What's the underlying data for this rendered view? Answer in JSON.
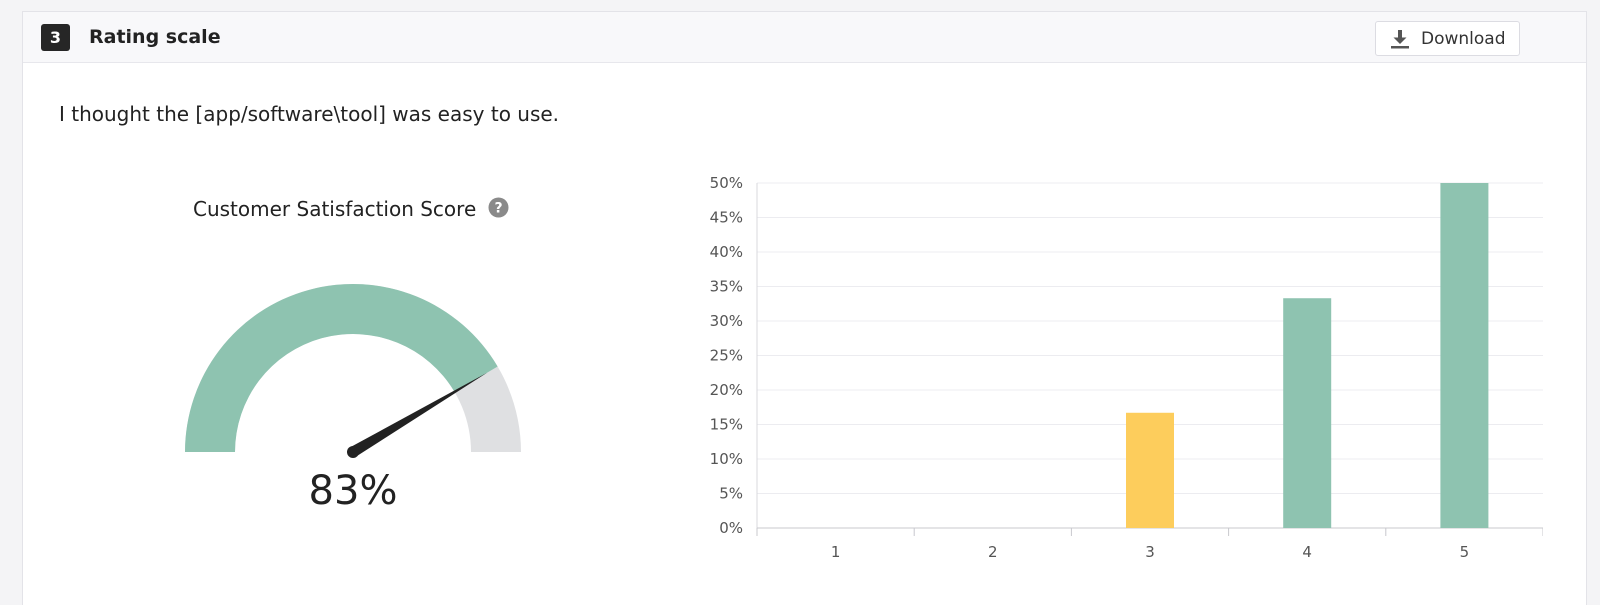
{
  "question": {
    "number": "3",
    "type_label": "Rating scale",
    "text": "I thought the [app/software\\tool] was easy to use."
  },
  "toolbar": {
    "download_label": "Download",
    "download_icon": "download-icon"
  },
  "gauge": {
    "title": "Customer Satisfaction Score",
    "help_icon": "help-icon",
    "value_label": "83%",
    "value": 0.83,
    "fill_color": "#8ec3b0",
    "track_color": "#dfe0e2",
    "needle_color": "#222222"
  },
  "chart_data": {
    "type": "bar",
    "categories": [
      "1",
      "2",
      "3",
      "4",
      "5"
    ],
    "values": [
      0,
      0,
      16.7,
      33.3,
      50
    ],
    "y_tick_labels": [
      "0%",
      "5%",
      "10%",
      "15%",
      "20%",
      "25%",
      "30%",
      "35%",
      "40%",
      "45%",
      "50%"
    ],
    "ylim": [
      0,
      50
    ],
    "grid": true,
    "bar_colors": [
      "#8ec3b0",
      "#8ec3b0",
      "#fdcd5c",
      "#8ec3b0",
      "#8ec3b0"
    ],
    "title": "",
    "xlabel": "",
    "ylabel": ""
  }
}
